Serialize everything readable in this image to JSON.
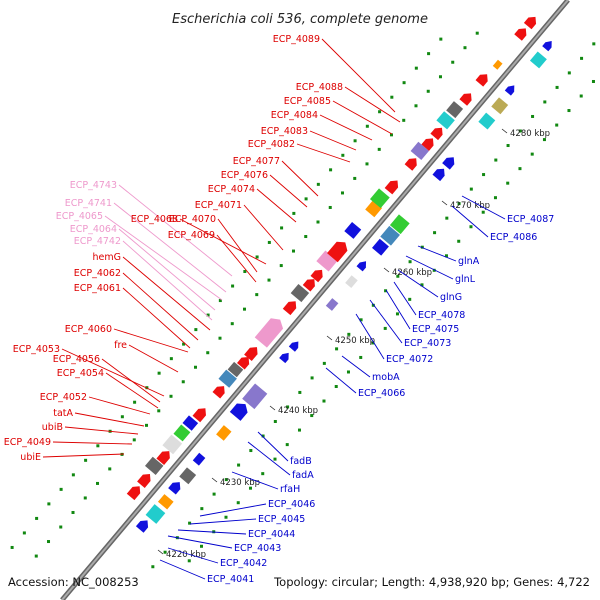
{
  "title": "Escherichia coli 536, complete genome",
  "footer": {
    "accession": "Accession: NC_008253",
    "summary": "Topology: circular; Length: 4,938,920 bp; Genes: 4,722"
  },
  "axis_ticks": [
    "4220 kbp",
    "4230 kbp",
    "4240 kbp",
    "4250 kbp",
    "4260 kbp",
    "4270 kbp",
    "4280 kbp"
  ],
  "colors": {
    "forward_gene": "#ee1111",
    "reverse_gene": "#1111dd",
    "faded_gene": "#ee99cc",
    "backbone": "#888888",
    "dot_track": "#118811"
  },
  "left_labels": [
    {
      "text": "ECP_4089",
      "color": "red"
    },
    {
      "text": "ECP_4088",
      "color": "red"
    },
    {
      "text": "ECP_4085",
      "color": "red"
    },
    {
      "text": "ECP_4084",
      "color": "red"
    },
    {
      "text": "ECP_4083",
      "color": "red"
    },
    {
      "text": "ECP_4082",
      "color": "red"
    },
    {
      "text": "ECP_4077",
      "color": "red"
    },
    {
      "text": "ECP_4076",
      "color": "red"
    },
    {
      "text": "ECP_4074",
      "color": "red"
    },
    {
      "text": "ECP_4743",
      "color": "pink"
    },
    {
      "text": "ECP_4071",
      "color": "red"
    },
    {
      "text": "ECP_4741",
      "color": "pink"
    },
    {
      "text": "ECP_4065",
      "color": "pink"
    },
    {
      "text": "ECP_4068",
      "color": "red"
    },
    {
      "text": "ECP_4070",
      "color": "red"
    },
    {
      "text": "ECP_4064",
      "color": "pink"
    },
    {
      "text": "ECP_4069",
      "color": "red"
    },
    {
      "text": "ECP_4742",
      "color": "pink"
    },
    {
      "text": "hemG",
      "color": "red"
    },
    {
      "text": "ECP_4062",
      "color": "red"
    },
    {
      "text": "ECP_4061",
      "color": "red"
    },
    {
      "text": "ECP_4060",
      "color": "red"
    },
    {
      "text": "fre",
      "color": "red"
    },
    {
      "text": "ECP_4053",
      "color": "red"
    },
    {
      "text": "ECP_4056",
      "color": "red"
    },
    {
      "text": "ECP_4054",
      "color": "red"
    },
    {
      "text": "ECP_4052",
      "color": "red"
    },
    {
      "text": "tatA",
      "color": "red"
    },
    {
      "text": "ubiB",
      "color": "red"
    },
    {
      "text": "ECP_4049",
      "color": "red"
    },
    {
      "text": "ubiE",
      "color": "red"
    }
  ],
  "right_labels": [
    {
      "text": "ECP_4087"
    },
    {
      "text": "ECP_4086"
    },
    {
      "text": "glnA"
    },
    {
      "text": "glnL"
    },
    {
      "text": "glnG"
    },
    {
      "text": "ECP_4078"
    },
    {
      "text": "ECP_4075"
    },
    {
      "text": "ECP_4073"
    },
    {
      "text": "ECP_4072"
    },
    {
      "text": "mobA"
    },
    {
      "text": "ECP_4066"
    },
    {
      "text": "fadB"
    },
    {
      "text": "fadA"
    },
    {
      "text": "rfaH"
    },
    {
      "text": "ECP_4046"
    },
    {
      "text": "ECP_4045"
    },
    {
      "text": "ECP_4044"
    },
    {
      "text": "ECP_4043"
    },
    {
      "text": "ECP_4042"
    },
    {
      "text": "ECP_4041"
    }
  ]
}
